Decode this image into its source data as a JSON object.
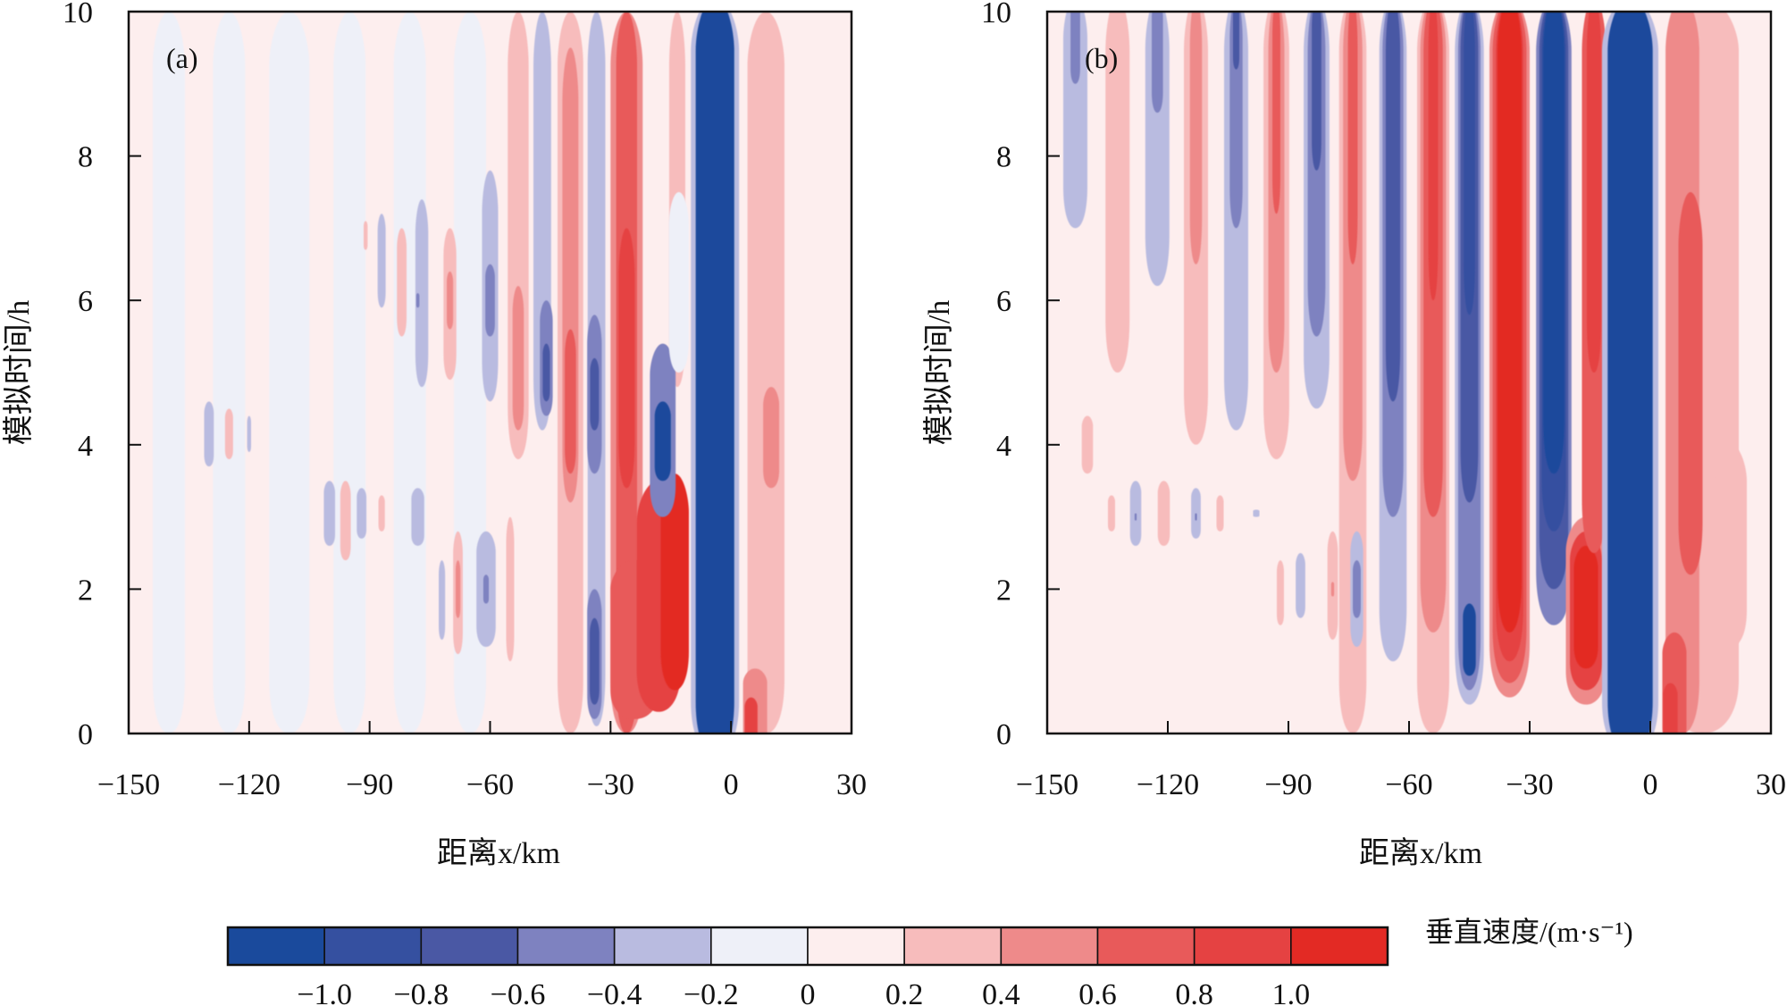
{
  "chart_data": {
    "type": "heatmap",
    "description": "Filled contour plots of vertical velocity vs distance and simulated time",
    "colorbar": {
      "title": "垂直速度/(m·s⁻¹)",
      "tick_labels": [
        "−1.0",
        "−0.8",
        "−0.6",
        "−0.4",
        "−0.2",
        "0",
        "0.2",
        "0.4",
        "0.6",
        "0.8",
        "1.0"
      ],
      "levels": [
        -1.2,
        -1.0,
        -0.8,
        -0.6,
        -0.4,
        -0.2,
        0,
        0.2,
        0.4,
        0.6,
        0.8,
        1.0,
        1.2
      ],
      "colors": [
        "#1a4a9c",
        "#3550a0",
        "#4a58a4",
        "#7e82c0",
        "#b9bbe0",
        "#eef0f8",
        "#fdeeee",
        "#f7bcbc",
        "#ee8a8a",
        "#e85a5a",
        "#e54242",
        "#e32a24"
      ],
      "orientation": "horizontal",
      "placement": "bottom"
    },
    "panels": [
      {
        "label": "(a)",
        "xlabel": "距离x/km",
        "ylabel": "模拟时间/h",
        "xlim": [
          -150,
          30
        ],
        "ylim": [
          0,
          10
        ],
        "xticks": [
          -150,
          -120,
          -90,
          -60,
          -30,
          0,
          30
        ],
        "xtick_labels": [
          "−150",
          "−120",
          "−90",
          "−60",
          "−30",
          "0",
          "30"
        ],
        "yticks": [
          0,
          2,
          4,
          6,
          8,
          10
        ],
        "ytick_labels": [
          "0",
          "2",
          "4",
          "6",
          "8",
          "10"
        ],
        "background_level": 0.1,
        "features": [
          {
            "x": -140,
            "t0": 0,
            "t1": 10,
            "w": 4,
            "v": -0.1
          },
          {
            "x": -125,
            "t0": 0,
            "t1": 10,
            "w": 4,
            "v": -0.1
          },
          {
            "x": -110,
            "t0": 0,
            "t1": 10,
            "w": 5,
            "v": -0.1
          },
          {
            "x": -95,
            "t0": 0,
            "t1": 10,
            "w": 4,
            "v": -0.1
          },
          {
            "x": -80,
            "t0": 0,
            "t1": 10,
            "w": 4,
            "v": -0.1
          },
          {
            "x": -65,
            "t0": 0,
            "t1": 10,
            "w": 4,
            "v": -0.1
          },
          {
            "x": -130,
            "t0": 3.7,
            "t1": 4.6,
            "w": 1.2,
            "v": -0.3
          },
          {
            "x": -125,
            "t0": 3.8,
            "t1": 4.5,
            "w": 1.0,
            "v": 0.3
          },
          {
            "x": -120,
            "t0": 3.9,
            "t1": 4.4,
            "w": 0.5,
            "v": -0.3
          },
          {
            "x": -100,
            "t0": 2.6,
            "t1": 3.5,
            "w": 1.4,
            "v": -0.3
          },
          {
            "x": -96,
            "t0": 2.4,
            "t1": 3.5,
            "w": 1.3,
            "v": 0.3
          },
          {
            "x": -92,
            "t0": 2.7,
            "t1": 3.4,
            "w": 1.2,
            "v": -0.3
          },
          {
            "x": -87,
            "t0": 2.8,
            "t1": 3.3,
            "w": 0.8,
            "v": 0.3
          },
          {
            "x": -91,
            "t0": 6.7,
            "t1": 7.1,
            "w": 0.5,
            "v": 0.3
          },
          {
            "x": -87,
            "t0": 5.9,
            "t1": 7.2,
            "w": 1.0,
            "v": -0.3
          },
          {
            "x": -82,
            "t0": 5.5,
            "t1": 7.0,
            "w": 1.2,
            "v": 0.3
          },
          {
            "x": -77,
            "t0": 4.8,
            "t1": 7.4,
            "w": 1.6,
            "v": -0.3
          },
          {
            "x": -78,
            "t0": 2.6,
            "t1": 3.4,
            "w": 1.6,
            "v": -0.3
          },
          {
            "x": -78,
            "t0": 5.9,
            "t1": 6.1,
            "w": 0.4,
            "v": -0.5
          },
          {
            "x": -72,
            "t0": 1.3,
            "t1": 2.4,
            "w": 0.8,
            "v": -0.3
          },
          {
            "x": -68,
            "t0": 1.1,
            "t1": 2.8,
            "w": 1.2,
            "v": 0.3
          },
          {
            "x": -68,
            "t0": 1.6,
            "t1": 2.4,
            "w": 0.6,
            "v": 0.5
          },
          {
            "x": -70,
            "t0": 4.9,
            "t1": 7.0,
            "w": 1.6,
            "v": 0.3
          },
          {
            "x": -70,
            "t0": 5.6,
            "t1": 6.4,
            "w": 0.8,
            "v": 0.5
          },
          {
            "x": -61,
            "t0": 1.2,
            "t1": 2.8,
            "w": 2.4,
            "v": -0.3
          },
          {
            "x": -61,
            "t0": 1.8,
            "t1": 2.2,
            "w": 0.7,
            "v": -0.5
          },
          {
            "x": -60,
            "t0": 4.6,
            "t1": 7.8,
            "w": 2.0,
            "v": -0.3
          },
          {
            "x": -60,
            "t0": 5.5,
            "t1": 6.5,
            "w": 1.2,
            "v": -0.5
          },
          {
            "x": -55,
            "t0": 1.0,
            "t1": 3.0,
            "w": 1.0,
            "v": 0.3
          },
          {
            "x": -53,
            "t0": 3.8,
            "t1": 10,
            "w": 2.6,
            "v": 0.3
          },
          {
            "x": -53,
            "t0": 4.2,
            "t1": 6.2,
            "w": 1.4,
            "v": 0.5
          },
          {
            "x": -47,
            "t0": 4.2,
            "t1": 10,
            "w": 2.2,
            "v": -0.3
          },
          {
            "x": -46,
            "t0": 4.4,
            "t1": 6.0,
            "w": 1.6,
            "v": -0.5
          },
          {
            "x": -46,
            "t0": 4.6,
            "t1": 5.4,
            "w": 0.9,
            "v": -0.7
          },
          {
            "x": -40,
            "t0": 0,
            "t1": 10,
            "w": 3.2,
            "v": 0.3
          },
          {
            "x": -40,
            "t0": 3.2,
            "t1": 9.5,
            "w": 2.0,
            "v": 0.5
          },
          {
            "x": -40,
            "t0": 3.6,
            "t1": 5.6,
            "w": 1.4,
            "v": 0.7
          },
          {
            "x": -33.5,
            "t0": 0.1,
            "t1": 10,
            "w": 2.2,
            "v": -0.3
          },
          {
            "x": -34,
            "t0": 0.2,
            "t1": 2.0,
            "w": 1.8,
            "v": -0.5
          },
          {
            "x": -34,
            "t0": 0.4,
            "t1": 1.6,
            "w": 1.2,
            "v": -0.8
          },
          {
            "x": -34,
            "t0": 3.6,
            "t1": 5.8,
            "w": 1.8,
            "v": -0.5
          },
          {
            "x": -34,
            "t0": 4.2,
            "t1": 5.2,
            "w": 1.1,
            "v": -0.7
          },
          {
            "x": -26,
            "t0": 0,
            "t1": 10,
            "w": 4.0,
            "v": 0.5
          },
          {
            "x": -26,
            "t0": 0,
            "t1": 10,
            "w": 2.6,
            "v": 0.7
          },
          {
            "x": -26,
            "t0": 3.4,
            "t1": 7.0,
            "w": 2.0,
            "v": 0.9
          },
          {
            "x": -24,
            "t0": 0.2,
            "t1": 2.4,
            "w": 6.0,
            "v": 0.7
          },
          {
            "x": -18,
            "t0": 0.3,
            "t1": 3.5,
            "w": 5.5,
            "v": 0.9
          },
          {
            "x": -14,
            "t0": 0.6,
            "t1": 3.6,
            "w": 3.5,
            "v": 1.1
          },
          {
            "x": -13.4,
            "t0": 4.8,
            "t1": 10,
            "w": 2.0,
            "v": 0.3
          },
          {
            "x": -17,
            "t0": 3.0,
            "t1": 5.4,
            "w": 3.2,
            "v": -0.5
          },
          {
            "x": -17,
            "t0": 3.5,
            "t1": 4.6,
            "w": 2.0,
            "v": -1.1
          },
          {
            "x": -13,
            "t0": 5.0,
            "t1": 7.5,
            "w": 2.5,
            "v": -0.1
          },
          {
            "x": -4,
            "t0": -0.3,
            "t1": 10.2,
            "w": 6.0,
            "v": -0.3
          },
          {
            "x": -4,
            "t0": -0.3,
            "t1": 10.2,
            "w": 4.8,
            "v": -1.1
          },
          {
            "x": 8.7,
            "t0": 0,
            "t1": 10,
            "w": 4.6,
            "v": 0.3
          },
          {
            "x": 10,
            "t0": 3.4,
            "t1": 4.8,
            "w": 2.0,
            "v": 0.5
          },
          {
            "x": 6,
            "t0": -0.2,
            "t1": 0.9,
            "w": 3.0,
            "v": 0.5
          },
          {
            "x": 5,
            "t0": -0.2,
            "t1": 0.5,
            "w": 1.6,
            "v": 0.9
          }
        ]
      },
      {
        "label": "(b)",
        "xlabel": "距离x/km",
        "ylabel": "模拟时间/h",
        "xlim": [
          -150,
          30
        ],
        "ylim": [
          0,
          10
        ],
        "xticks": [
          -150,
          -120,
          -90,
          -60,
          -30,
          0,
          30
        ],
        "xtick_labels": [
          "−150",
          "−120",
          "−90",
          "−60",
          "−30",
          "0",
          "30"
        ],
        "yticks": [
          0,
          2,
          4,
          6,
          8,
          10
        ],
        "ytick_labels": [
          "0",
          "2",
          "4",
          "6",
          "8",
          "10"
        ],
        "background_level": 0.1,
        "features": [
          {
            "x": -143,
            "t0": 7.0,
            "t1": 10.2,
            "w": 3.0,
            "v": -0.3
          },
          {
            "x": -143,
            "t0": 9.0,
            "t1": 10.2,
            "w": 1.2,
            "v": -0.5
          },
          {
            "x": -140,
            "t0": 3.6,
            "t1": 4.4,
            "w": 1.4,
            "v": 0.3
          },
          {
            "x": -132.5,
            "t0": 5.0,
            "t1": 10.2,
            "w": 3.0,
            "v": 0.3
          },
          {
            "x": -134,
            "t0": 2.8,
            "t1": 3.3,
            "w": 0.9,
            "v": 0.3
          },
          {
            "x": -128,
            "t0": 2.6,
            "t1": 3.5,
            "w": 1.4,
            "v": -0.3
          },
          {
            "x": -128,
            "t0": 2.95,
            "t1": 3.05,
            "w": 0.3,
            "v": -0.5
          },
          {
            "x": -122.6,
            "t0": 6.2,
            "t1": 10.2,
            "w": 3.0,
            "v": -0.3
          },
          {
            "x": -122.6,
            "t0": 8.6,
            "t1": 10.2,
            "w": 1.4,
            "v": -0.5
          },
          {
            "x": -121,
            "t0": 2.6,
            "t1": 3.5,
            "w": 1.5,
            "v": 0.3
          },
          {
            "x": -113,
            "t0": 4.0,
            "t1": 10.2,
            "w": 3.0,
            "v": 0.3
          },
          {
            "x": -113,
            "t0": 6.5,
            "t1": 10.2,
            "w": 1.5,
            "v": 0.5
          },
          {
            "x": -113,
            "t0": 2.7,
            "t1": 3.4,
            "w": 1.2,
            "v": -0.3
          },
          {
            "x": -113,
            "t0": 2.95,
            "t1": 3.05,
            "w": 0.3,
            "v": -0.5
          },
          {
            "x": -107,
            "t0": 2.8,
            "t1": 3.3,
            "w": 0.9,
            "v": 0.3
          },
          {
            "x": -103,
            "t0": 4.2,
            "t1": 10.2,
            "w": 3.0,
            "v": -0.3
          },
          {
            "x": -103,
            "t0": 7.0,
            "t1": 10.2,
            "w": 1.6,
            "v": -0.5
          },
          {
            "x": -103,
            "t0": 9.2,
            "t1": 10.2,
            "w": 0.8,
            "v": -0.7
          },
          {
            "x": -98,
            "t0": 3.0,
            "t1": 3.1,
            "w": 0.8,
            "v": -0.3
          },
          {
            "x": -93,
            "t0": 3.8,
            "t1": 10.2,
            "w": 3.2,
            "v": 0.3
          },
          {
            "x": -93,
            "t0": 5.0,
            "t1": 10.2,
            "w": 2.0,
            "v": 0.5
          },
          {
            "x": -93,
            "t0": 7.2,
            "t1": 10.2,
            "w": 1.0,
            "v": 0.7
          },
          {
            "x": -92,
            "t0": 1.5,
            "t1": 2.4,
            "w": 0.9,
            "v": 0.3
          },
          {
            "x": -87,
            "t0": 1.6,
            "t1": 2.5,
            "w": 1.2,
            "v": -0.3
          },
          {
            "x": -83,
            "t0": 4.5,
            "t1": 10.2,
            "w": 3.2,
            "v": -0.3
          },
          {
            "x": -83,
            "t0": 5.5,
            "t1": 10.2,
            "w": 2.2,
            "v": -0.5
          },
          {
            "x": -83,
            "t0": 7.8,
            "t1": 10.2,
            "w": 1.2,
            "v": -0.7
          },
          {
            "x": -79,
            "t0": 1.3,
            "t1": 2.8,
            "w": 1.3,
            "v": 0.3
          },
          {
            "x": -79,
            "t0": 1.9,
            "t1": 2.1,
            "w": 0.4,
            "v": 0.5
          },
          {
            "x": -74,
            "t0": 0,
            "t1": 10.2,
            "w": 3.4,
            "v": 0.3
          },
          {
            "x": -74,
            "t0": 3.5,
            "t1": 10.2,
            "w": 2.4,
            "v": 0.5
          },
          {
            "x": -74,
            "t0": 6.5,
            "t1": 10.2,
            "w": 1.2,
            "v": 0.7
          },
          {
            "x": -73,
            "t0": 1.2,
            "t1": 2.8,
            "w": 1.6,
            "v": -0.3
          },
          {
            "x": -73,
            "t0": 1.6,
            "t1": 2.4,
            "w": 1.0,
            "v": -0.5
          },
          {
            "x": -64,
            "t0": 1.0,
            "t1": 10.2,
            "w": 3.4,
            "v": -0.3
          },
          {
            "x": -64,
            "t0": 3.0,
            "t1": 10.2,
            "w": 2.6,
            "v": -0.5
          },
          {
            "x": -64,
            "t0": 4.6,
            "t1": 10.2,
            "w": 1.8,
            "v": -0.7
          },
          {
            "x": -56,
            "t0": 0.6,
            "t1": 1.2,
            "w": 0.6,
            "v": -0.3
          },
          {
            "x": -54,
            "t0": 0,
            "t1": 10.2,
            "w": 4.0,
            "v": 0.3
          },
          {
            "x": -54,
            "t0": 1.4,
            "t1": 10.2,
            "w": 3.2,
            "v": 0.5
          },
          {
            "x": -54,
            "t0": 3.0,
            "t1": 10.2,
            "w": 2.4,
            "v": 0.7
          },
          {
            "x": -54,
            "t0": 6.0,
            "t1": 10.2,
            "w": 1.2,
            "v": 0.9
          },
          {
            "x": -45,
            "t0": 0.4,
            "t1": 10.2,
            "w": 3.6,
            "v": -0.3
          },
          {
            "x": -45,
            "t0": 0.6,
            "t1": 10.2,
            "w": 2.8,
            "v": -0.5
          },
          {
            "x": -45,
            "t0": 3.2,
            "t1": 10.2,
            "w": 2.2,
            "v": -0.7
          },
          {
            "x": -45,
            "t0": 5.8,
            "t1": 10.2,
            "w": 1.4,
            "v": -0.9
          },
          {
            "x": -45,
            "t0": 0.8,
            "t1": 1.8,
            "w": 1.6,
            "v": -1.1
          },
          {
            "x": -35,
            "t0": 0.5,
            "t1": 10.2,
            "w": 5.0,
            "v": 0.5
          },
          {
            "x": -35,
            "t0": 0.7,
            "t1": 10.2,
            "w": 4.2,
            "v": 0.7
          },
          {
            "x": -35,
            "t0": 1.0,
            "t1": 10.2,
            "w": 3.4,
            "v": 0.9
          },
          {
            "x": -35,
            "t0": 1.4,
            "t1": 10.2,
            "w": 3.0,
            "v": 1.1
          },
          {
            "x": -24,
            "t0": 1.5,
            "t1": 10.2,
            "w": 4.4,
            "v": -0.5
          },
          {
            "x": -24,
            "t0": 2.0,
            "t1": 10.2,
            "w": 3.6,
            "v": -0.7
          },
          {
            "x": -24,
            "t0": 2.8,
            "t1": 10.2,
            "w": 3.0,
            "v": -0.9
          },
          {
            "x": -24,
            "t0": 3.6,
            "t1": 10.2,
            "w": 2.6,
            "v": -1.1
          },
          {
            "x": -16,
            "t0": 0.4,
            "t1": 3.0,
            "w": 5.0,
            "v": 0.5
          },
          {
            "x": -16,
            "t0": 0.6,
            "t1": 2.8,
            "w": 4.0,
            "v": 0.9
          },
          {
            "x": -16,
            "t0": 0.9,
            "t1": 2.6,
            "w": 3.0,
            "v": 1.1
          },
          {
            "x": -14,
            "t0": 2.5,
            "t1": 10.2,
            "w": 3.0,
            "v": 0.7
          },
          {
            "x": -14,
            "t0": 5.0,
            "t1": 10.2,
            "w": 1.8,
            "v": 0.9
          },
          {
            "x": -5,
            "t0": -0.3,
            "t1": 10.2,
            "w": 7.0,
            "v": -0.3
          },
          {
            "x": -5,
            "t0": -0.3,
            "t1": 10.2,
            "w": 5.6,
            "v": -1.1
          },
          {
            "x": 13,
            "t0": 0,
            "t1": 10.2,
            "w": 9.0,
            "v": 0.3
          },
          {
            "x": 20,
            "t0": 1.2,
            "t1": 4.0,
            "w": 4.0,
            "v": 0.3
          },
          {
            "x": 8,
            "t0": 0,
            "t1": 10.2,
            "w": 4.2,
            "v": 0.5
          },
          {
            "x": 10,
            "t0": 2.2,
            "t1": 7.5,
            "w": 3.0,
            "v": 0.7
          },
          {
            "x": 6,
            "t0": -0.2,
            "t1": 1.4,
            "w": 3.0,
            "v": 0.7
          },
          {
            "x": 5,
            "t0": -0.2,
            "t1": 0.7,
            "w": 1.8,
            "v": 0.9
          }
        ]
      }
    ]
  }
}
